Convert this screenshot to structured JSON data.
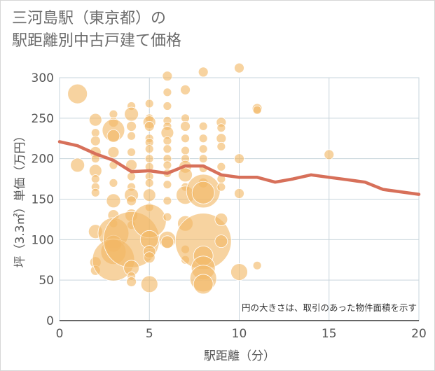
{
  "title": {
    "line1": "三河島駅（東京都）の",
    "line2": "駅距離別中古戸建て価格"
  },
  "note": "円の大きさは、取引のあった物件面積を示す",
  "colors": {
    "bubble": "#f2b866",
    "line": "#d7705a",
    "grid": "#c7d4dc",
    "axis": "#333333"
  },
  "chart_data": {
    "type": "scatter",
    "xlabel": "駅距離（分）",
    "ylabel": "坪（3.3㎡）単価（万円）",
    "xlim": [
      0,
      20
    ],
    "ylim": [
      0,
      300
    ],
    "xticks": [
      0,
      5,
      10,
      15,
      20
    ],
    "yticks": [
      0,
      50,
      100,
      150,
      200,
      250,
      300
    ],
    "grid": true,
    "bubbles": [
      {
        "x": 1,
        "y": 280,
        "r": 14
      },
      {
        "x": 1,
        "y": 192,
        "r": 10
      },
      {
        "x": 2,
        "y": 248,
        "r": 9
      },
      {
        "x": 2,
        "y": 232,
        "r": 6
      },
      {
        "x": 2,
        "y": 222,
        "r": 7
      },
      {
        "x": 2,
        "y": 208,
        "r": 8
      },
      {
        "x": 2,
        "y": 200,
        "r": 6
      },
      {
        "x": 2,
        "y": 185,
        "r": 9
      },
      {
        "x": 2,
        "y": 175,
        "r": 6
      },
      {
        "x": 2,
        "y": 165,
        "r": 6
      },
      {
        "x": 2,
        "y": 158,
        "r": 6
      },
      {
        "x": 2,
        "y": 110,
        "r": 10
      },
      {
        "x": 2,
        "y": 72,
        "r": 8
      },
      {
        "x": 2,
        "y": 62,
        "r": 7
      },
      {
        "x": 3,
        "y": 255,
        "r": 6
      },
      {
        "x": 3,
        "y": 245,
        "r": 7
      },
      {
        "x": 3,
        "y": 235,
        "r": 16
      },
      {
        "x": 3,
        "y": 228,
        "r": 9
      },
      {
        "x": 3,
        "y": 208,
        "r": 8
      },
      {
        "x": 3,
        "y": 192,
        "r": 6
      },
      {
        "x": 3,
        "y": 170,
        "r": 6
      },
      {
        "x": 3,
        "y": 148,
        "r": 10
      },
      {
        "x": 3,
        "y": 130,
        "r": 8
      },
      {
        "x": 3,
        "y": 120,
        "r": 6
      },
      {
        "x": 3,
        "y": 108,
        "r": 22
      },
      {
        "x": 3,
        "y": 95,
        "r": 12
      },
      {
        "x": 3,
        "y": 85,
        "r": 18
      },
      {
        "x": 3,
        "y": 75,
        "r": 30
      },
      {
        "x": 4,
        "y": 265,
        "r": 6
      },
      {
        "x": 4,
        "y": 255,
        "r": 10
      },
      {
        "x": 4,
        "y": 240,
        "r": 7
      },
      {
        "x": 4,
        "y": 228,
        "r": 6
      },
      {
        "x": 4,
        "y": 208,
        "r": 6
      },
      {
        "x": 4,
        "y": 192,
        "r": 8
      },
      {
        "x": 4,
        "y": 178,
        "r": 6
      },
      {
        "x": 4,
        "y": 165,
        "r": 6
      },
      {
        "x": 4,
        "y": 155,
        "r": 10
      },
      {
        "x": 4,
        "y": 148,
        "r": 7
      },
      {
        "x": 4,
        "y": 130,
        "r": 9
      },
      {
        "x": 4,
        "y": 118,
        "r": 6
      },
      {
        "x": 4,
        "y": 100,
        "r": 40
      },
      {
        "x": 4,
        "y": 65,
        "r": 11
      },
      {
        "x": 4,
        "y": 55,
        "r": 6
      },
      {
        "x": 4,
        "y": 48,
        "r": 7
      },
      {
        "x": 5,
        "y": 268,
        "r": 6
      },
      {
        "x": 5,
        "y": 250,
        "r": 6
      },
      {
        "x": 5,
        "y": 245,
        "r": 9
      },
      {
        "x": 5,
        "y": 240,
        "r": 7
      },
      {
        "x": 5,
        "y": 225,
        "r": 6
      },
      {
        "x": 5,
        "y": 220,
        "r": 6
      },
      {
        "x": 5,
        "y": 212,
        "r": 6
      },
      {
        "x": 5,
        "y": 200,
        "r": 6
      },
      {
        "x": 5,
        "y": 190,
        "r": 6
      },
      {
        "x": 5,
        "y": 178,
        "r": 6
      },
      {
        "x": 5,
        "y": 170,
        "r": 6
      },
      {
        "x": 5,
        "y": 155,
        "r": 9
      },
      {
        "x": 5,
        "y": 140,
        "r": 6
      },
      {
        "x": 5,
        "y": 123,
        "r": 24
      },
      {
        "x": 5,
        "y": 100,
        "r": 13
      },
      {
        "x": 5,
        "y": 85,
        "r": 9
      },
      {
        "x": 5,
        "y": 78,
        "r": 8
      },
      {
        "x": 5,
        "y": 45,
        "r": 12
      },
      {
        "x": 6,
        "y": 302,
        "r": 7
      },
      {
        "x": 6,
        "y": 282,
        "r": 6
      },
      {
        "x": 6,
        "y": 265,
        "r": 6
      },
      {
        "x": 6,
        "y": 247,
        "r": 6
      },
      {
        "x": 6,
        "y": 240,
        "r": 6
      },
      {
        "x": 6,
        "y": 232,
        "r": 9
      },
      {
        "x": 6,
        "y": 222,
        "r": 6
      },
      {
        "x": 6,
        "y": 212,
        "r": 6
      },
      {
        "x": 6,
        "y": 200,
        "r": 6
      },
      {
        "x": 6,
        "y": 192,
        "r": 6
      },
      {
        "x": 6,
        "y": 182,
        "r": 6
      },
      {
        "x": 6,
        "y": 168,
        "r": 6
      },
      {
        "x": 6,
        "y": 148,
        "r": 6
      },
      {
        "x": 6,
        "y": 128,
        "r": 6
      },
      {
        "x": 6,
        "y": 100,
        "r": 12
      },
      {
        "x": 6,
        "y": 97,
        "r": 9
      },
      {
        "x": 7,
        "y": 285,
        "r": 7
      },
      {
        "x": 7,
        "y": 250,
        "r": 6
      },
      {
        "x": 7,
        "y": 240,
        "r": 7
      },
      {
        "x": 7,
        "y": 225,
        "r": 6
      },
      {
        "x": 7,
        "y": 210,
        "r": 6
      },
      {
        "x": 7,
        "y": 200,
        "r": 6
      },
      {
        "x": 7,
        "y": 190,
        "r": 9
      },
      {
        "x": 7,
        "y": 180,
        "r": 10
      },
      {
        "x": 7,
        "y": 165,
        "r": 6
      },
      {
        "x": 7,
        "y": 155,
        "r": 13
      },
      {
        "x": 7,
        "y": 120,
        "r": 11
      },
      {
        "x": 7,
        "y": 88,
        "r": 6
      },
      {
        "x": 7,
        "y": 75,
        "r": 6
      },
      {
        "x": 8,
        "y": 307,
        "r": 7
      },
      {
        "x": 8,
        "y": 240,
        "r": 6
      },
      {
        "x": 8,
        "y": 225,
        "r": 6
      },
      {
        "x": 8,
        "y": 212,
        "r": 6
      },
      {
        "x": 8,
        "y": 200,
        "r": 6
      },
      {
        "x": 8,
        "y": 188,
        "r": 6
      },
      {
        "x": 8,
        "y": 170,
        "r": 7
      },
      {
        "x": 8,
        "y": 160,
        "r": 24
      },
      {
        "x": 8,
        "y": 158,
        "r": 16
      },
      {
        "x": 8,
        "y": 98,
        "r": 40
      },
      {
        "x": 8,
        "y": 80,
        "r": 14
      },
      {
        "x": 8,
        "y": 65,
        "r": 17
      },
      {
        "x": 8,
        "y": 52,
        "r": 19
      },
      {
        "x": 8,
        "y": 45,
        "r": 14
      },
      {
        "x": 9,
        "y": 245,
        "r": 7
      },
      {
        "x": 9,
        "y": 238,
        "r": 6
      },
      {
        "x": 9,
        "y": 225,
        "r": 7
      },
      {
        "x": 9,
        "y": 215,
        "r": 6
      },
      {
        "x": 9,
        "y": 190,
        "r": 6
      },
      {
        "x": 9,
        "y": 175,
        "r": 6
      },
      {
        "x": 9,
        "y": 165,
        "r": 6
      },
      {
        "x": 9,
        "y": 125,
        "r": 9
      },
      {
        "x": 9,
        "y": 98,
        "r": 9
      },
      {
        "x": 10,
        "y": 312,
        "r": 7
      },
      {
        "x": 10,
        "y": 200,
        "r": 7
      },
      {
        "x": 10,
        "y": 157,
        "r": 7
      },
      {
        "x": 10,
        "y": 60,
        "r": 12
      },
      {
        "x": 11,
        "y": 262,
        "r": 7
      },
      {
        "x": 11,
        "y": 260,
        "r": 6
      },
      {
        "x": 11,
        "y": 68,
        "r": 6
      },
      {
        "x": 15,
        "y": 205,
        "r": 7
      }
    ],
    "line": {
      "x": [
        0,
        1,
        2,
        3,
        4,
        5,
        6,
        7,
        8,
        9,
        10,
        11,
        12,
        13,
        14,
        15,
        16,
        17,
        18,
        19,
        20
      ],
      "y": [
        221,
        216,
        206,
        198,
        184,
        185,
        182,
        191,
        191,
        180,
        177,
        177,
        171,
        175,
        180,
        177,
        174,
        171,
        162,
        159,
        156
      ]
    }
  }
}
